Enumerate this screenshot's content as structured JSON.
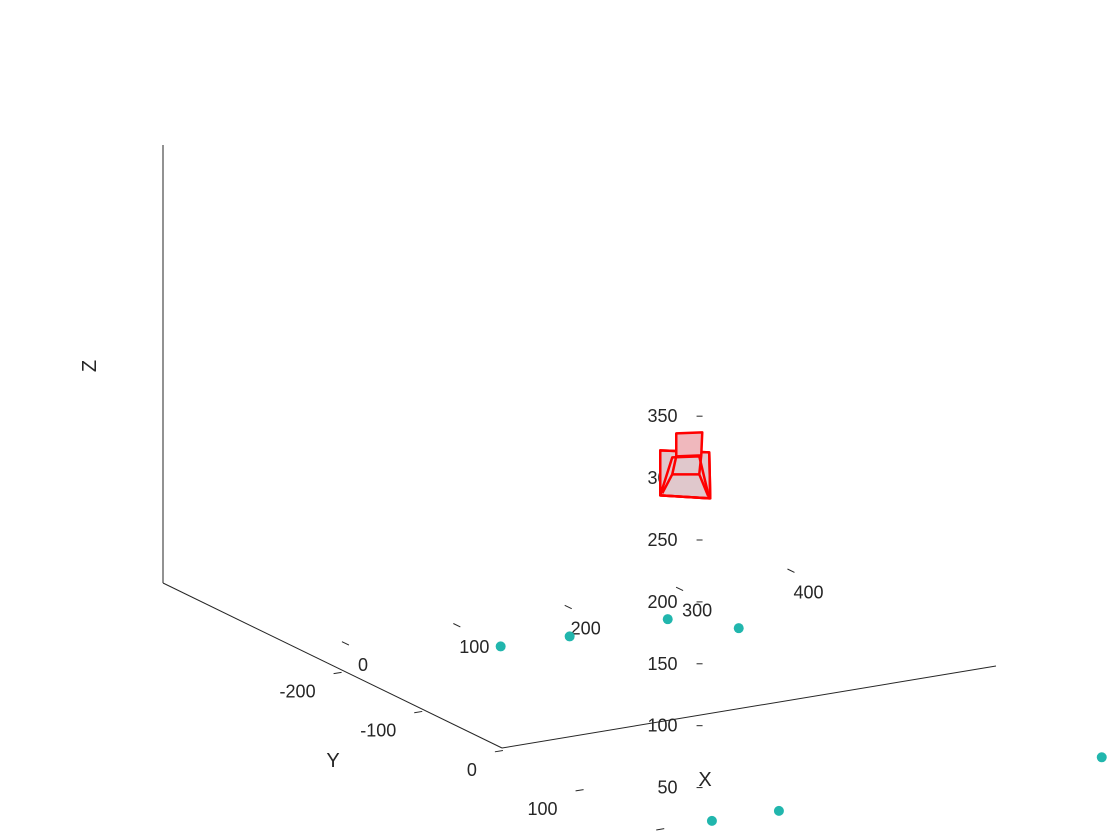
{
  "chart_data": {
    "type": "scatter",
    "title": "",
    "xlabel": "X",
    "ylabel": "Y",
    "zlabel": "Z",
    "xlim": [
      -50,
      400
    ],
    "ylim": [
      -250,
      250
    ],
    "zlim": [
      0,
      350
    ],
    "x_ticks": [
      "0",
      "100",
      "200",
      "300",
      "400"
    ],
    "y_ticks": [
      "200",
      "100",
      "0",
      "-100",
      "-200"
    ],
    "z_ticks": [
      "0",
      "50",
      "100",
      "150",
      "200",
      "250",
      "300",
      "350"
    ],
    "grid": false,
    "points": {
      "color": "#21b6ad",
      "z": 0,
      "x": [
        0,
        0,
        100,
        100,
        250,
        250,
        350,
        350
      ],
      "y": [
        200,
        200,
        -200,
        -200,
        -200,
        -200,
        200,
        200
      ]
    },
    "camera": {
      "color": "#ff0000",
      "fill": "#e0c8cc",
      "center": {
        "x": 120,
        "y": 0,
        "z": 200
      }
    }
  }
}
